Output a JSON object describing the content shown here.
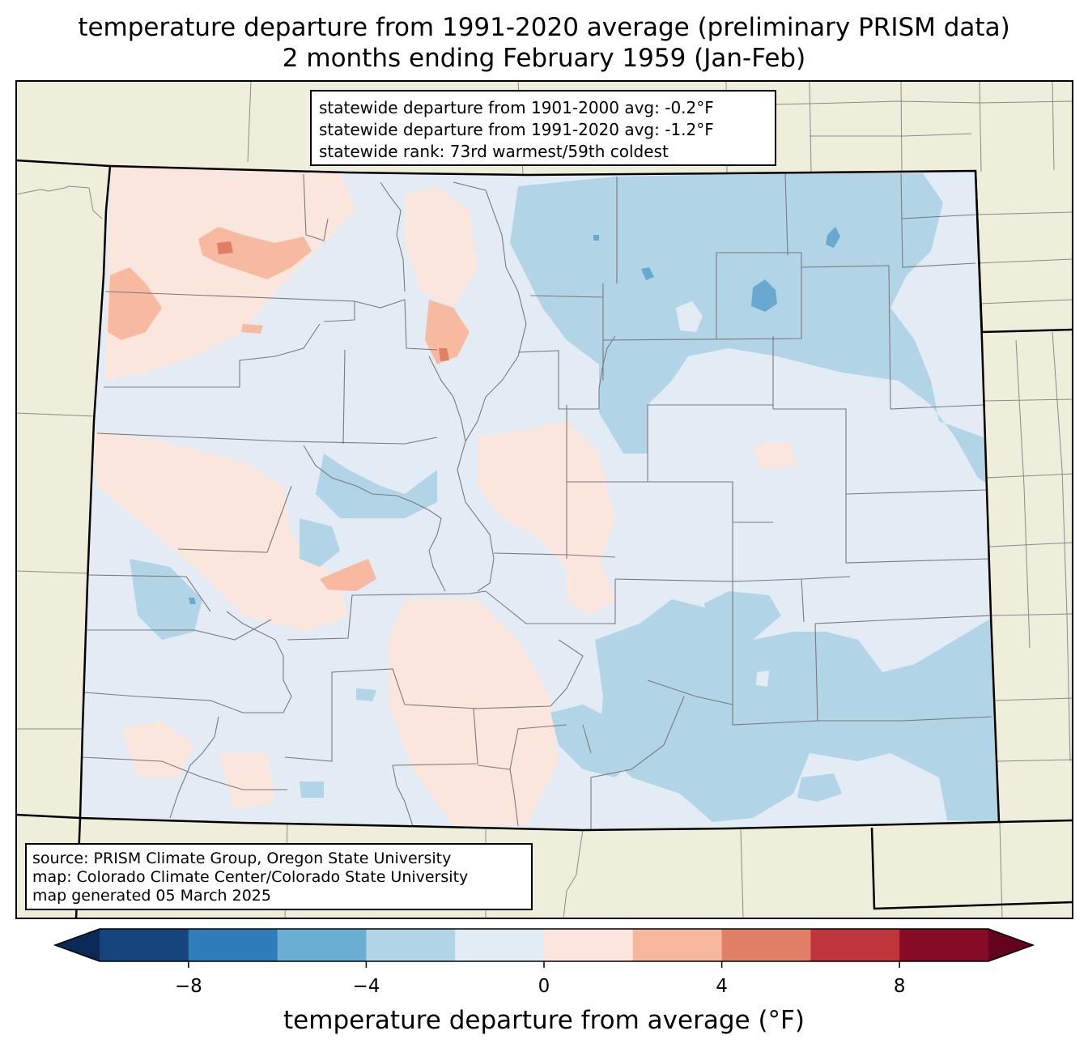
{
  "title": {
    "line1": "temperature departure from 1991-2020 average (preliminary PRISM data)",
    "line2": "2 months ending February 1959 (Jan-Feb)"
  },
  "stats": {
    "line1": "statewide departure from 1901-2000 avg: -0.2°F",
    "line2": "statewide departure from 1991-2020 avg: -1.2°F",
    "line3": "statewide rank: 73rd warmest/59th coldest"
  },
  "source": {
    "line1": "source: PRISM Climate Group, Oregon State University",
    "line2": "map: Colorado Climate Center/Colorado State University",
    "line3": "map generated 05 March 2025"
  },
  "colors": {
    "land_outside": "#efeedb",
    "water_like_blue_dark": "#67a9cf",
    "near_zero_cool": "#e3ecf4",
    "near_zero_warm": "#fbe6de",
    "cool_2_4": "#b2d4e7",
    "warm_2_4": "#f7b9a0"
  },
  "colorbar": {
    "label": "temperature departure from average (°F)",
    "ticks": [
      {
        "value": -8,
        "label": "−8"
      },
      {
        "value": -4,
        "label": "−4"
      },
      {
        "value": 0,
        "label": "0"
      },
      {
        "value": 4,
        "label": "4"
      },
      {
        "value": 8,
        "label": "8"
      }
    ],
    "bins": [
      {
        "from": -10,
        "to": -8,
        "color": "#16457d"
      },
      {
        "from": -8,
        "to": -6,
        "color": "#2f7cba"
      },
      {
        "from": -6,
        "to": -4,
        "color": "#6aaed3"
      },
      {
        "from": -4,
        "to": -2,
        "color": "#b1d4e7"
      },
      {
        "from": -2,
        "to": 0,
        "color": "#e2ecf4"
      },
      {
        "from": 0,
        "to": 2,
        "color": "#fbe5dc"
      },
      {
        "from": 2,
        "to": 4,
        "color": "#f7b79c"
      },
      {
        "from": 4,
        "to": 6,
        "color": "#e07e66"
      },
      {
        "from": 6,
        "to": 8,
        "color": "#c0353b"
      },
      {
        "from": 8,
        "to": 10,
        "color": "#860b25"
      }
    ],
    "under_color": "#0b2a57",
    "over_color": "#65021e"
  }
}
